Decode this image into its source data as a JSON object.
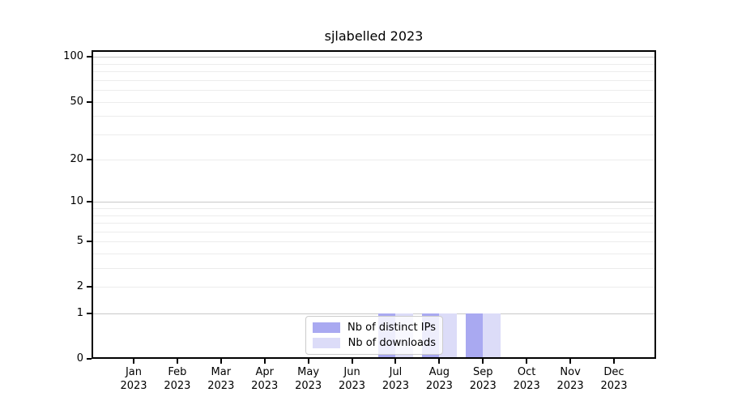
{
  "chart_data": {
    "type": "bar",
    "title": "sjlabelled 2023",
    "categories": [
      "Jan 2023",
      "Feb 2023",
      "Mar 2023",
      "Apr 2023",
      "May 2023",
      "Jun 2023",
      "Jul 2023",
      "Aug 2023",
      "Sep 2023",
      "Oct 2023",
      "Nov 2023",
      "Dec 2023"
    ],
    "x_axis": {
      "tick_labels_line1": [
        "Jan",
        "Feb",
        "Mar",
        "Apr",
        "May",
        "Jun",
        "Jul",
        "Aug",
        "Sep",
        "Oct",
        "Nov",
        "Dec"
      ],
      "tick_labels_line2": "2023"
    },
    "y_axis": {
      "scale": "log1p",
      "tick_values": [
        0,
        1,
        2,
        5,
        10,
        20,
        50,
        100
      ],
      "tick_labels": [
        "0",
        "1",
        "2",
        "5",
        "10",
        "20",
        "50",
        "100"
      ],
      "major_gridline_values": [
        1,
        10,
        100
      ],
      "minor_gridline_values": [
        2,
        3,
        4,
        5,
        6,
        7,
        8,
        9,
        20,
        30,
        40,
        50,
        60,
        70,
        80,
        90
      ],
      "ylim": [
        0,
        112
      ]
    },
    "series": [
      {
        "key": "distinct-ips",
        "name": "Nb of distinct IPs",
        "color": "#a9a9f1",
        "values": [
          0,
          0,
          0,
          0,
          0,
          0,
          1,
          1,
          1,
          0,
          0,
          0
        ]
      },
      {
        "key": "downloads",
        "name": "Nb of downloads",
        "color": "#dcdcf8",
        "values": [
          0,
          0,
          0,
          0,
          0,
          0,
          1,
          1,
          1,
          0,
          0,
          0
        ]
      }
    ],
    "legend": {
      "position": "inside-bottom-center",
      "entries": [
        "Nb of distinct IPs",
        "Nb of downloads"
      ]
    },
    "grid": true,
    "colors": {
      "major_grid": "#c9c9c9",
      "minor_grid": "#ececec",
      "spine": "#000000",
      "legend_border": "#cccccc",
      "background": "#ffffff"
    }
  }
}
